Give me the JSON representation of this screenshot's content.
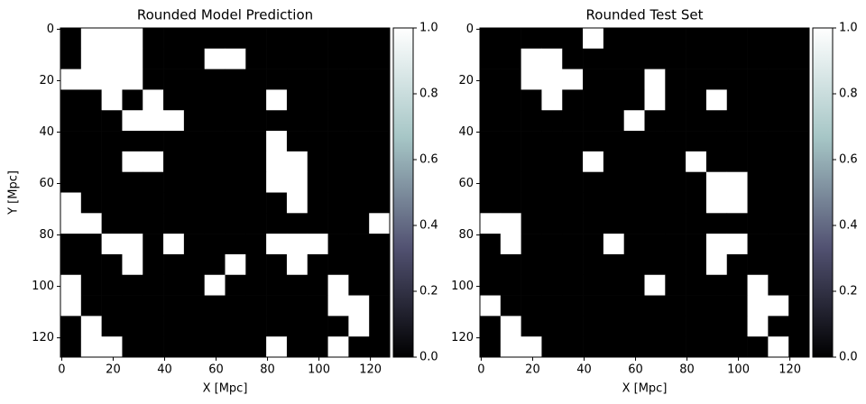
{
  "chart_data": [
    {
      "type": "heatmap",
      "title": "Rounded Model Prediction",
      "xlabel": "X [Mpc]",
      "ylabel": "Y [Mpc]",
      "xlim": [
        -0.5,
        127.5
      ],
      "ylim": [
        127.5,
        -0.5
      ],
      "xticks": [
        0,
        20,
        40,
        60,
        80,
        100,
        120
      ],
      "yticks": [
        0,
        20,
        40,
        60,
        80,
        100,
        120
      ],
      "colormap": [
        "#000000",
        "#525272",
        "#a6c6c6",
        "#ffffff"
      ],
      "colorbar": {
        "lim": [
          0,
          1
        ],
        "ticks": [
          {
            "value": 0,
            "label": "0.0"
          },
          {
            "value": 0.2,
            "label": "0.2"
          },
          {
            "value": 0.4,
            "label": "0.4"
          },
          {
            "value": 0.6,
            "label": "0.6"
          },
          {
            "value": 0.8,
            "label": "0.8"
          },
          {
            "value": 1,
            "label": "1.0"
          }
        ]
      },
      "z": [
        [
          0,
          1,
          1,
          1,
          0,
          0,
          0,
          0,
          0,
          0,
          0,
          0,
          0,
          0,
          0,
          0
        ],
        [
          0,
          1,
          1,
          1,
          0,
          0,
          0,
          1,
          1,
          0,
          0,
          0,
          0,
          0,
          0,
          0
        ],
        [
          1,
          1,
          1,
          1,
          0,
          0,
          0,
          0,
          0,
          0,
          0,
          0,
          0,
          0,
          0,
          0
        ],
        [
          0,
          0,
          1,
          0,
          1,
          0,
          0,
          0,
          0,
          0,
          1,
          0,
          0,
          0,
          0,
          0
        ],
        [
          0,
          0,
          0,
          1,
          1,
          1,
          0,
          0,
          0,
          0,
          0,
          0,
          0,
          0,
          0,
          0
        ],
        [
          0,
          0,
          0,
          0,
          0,
          0,
          0,
          0,
          0,
          0,
          1,
          0,
          0,
          0,
          0,
          0
        ],
        [
          0,
          0,
          0,
          1,
          1,
          0,
          0,
          0,
          0,
          0,
          1,
          1,
          0,
          0,
          0,
          0
        ],
        [
          0,
          0,
          0,
          0,
          0,
          0,
          0,
          0,
          0,
          0,
          1,
          1,
          0,
          0,
          0,
          0
        ],
        [
          1,
          0,
          0,
          0,
          0,
          0,
          0,
          0,
          0,
          0,
          0,
          1,
          0,
          0,
          0,
          0
        ],
        [
          1,
          1,
          0,
          0,
          0,
          0,
          0,
          0,
          0,
          0,
          0,
          0,
          0,
          0,
          0,
          1
        ],
        [
          0,
          0,
          1,
          1,
          0,
          1,
          0,
          0,
          0,
          0,
          1,
          1,
          1,
          0,
          0,
          0
        ],
        [
          0,
          0,
          0,
          1,
          0,
          0,
          0,
          0,
          1,
          0,
          0,
          1,
          0,
          0,
          0,
          0
        ],
        [
          1,
          0,
          0,
          0,
          0,
          0,
          0,
          1,
          0,
          0,
          0,
          0,
          0,
          1,
          0,
          0
        ],
        [
          1,
          0,
          0,
          0,
          0,
          0,
          0,
          0,
          0,
          0,
          0,
          0,
          0,
          1,
          1,
          0
        ],
        [
          0,
          1,
          0,
          0,
          0,
          0,
          0,
          0,
          0,
          0,
          0,
          0,
          0,
          0,
          1,
          0
        ],
        [
          0,
          1,
          1,
          0,
          0,
          0,
          0,
          0,
          0,
          0,
          1,
          0,
          0,
          1,
          0,
          0
        ]
      ]
    },
    {
      "type": "heatmap",
      "title": "Rounded Test Set",
      "xlabel": "X [Mpc]",
      "xlim": [
        -0.5,
        127.5
      ],
      "ylim": [
        127.5,
        -0.5
      ],
      "xticks": [
        0,
        20,
        40,
        60,
        80,
        100,
        120
      ],
      "yticks": [
        0,
        20,
        40,
        60,
        80,
        100,
        120
      ],
      "colormap": [
        "#000000",
        "#525272",
        "#a6c6c6",
        "#ffffff"
      ],
      "colorbar": {
        "lim": [
          0,
          1
        ],
        "ticks": [
          {
            "value": 0,
            "label": "0.0"
          },
          {
            "value": 0.2,
            "label": "0.2"
          },
          {
            "value": 0.4,
            "label": "0.4"
          },
          {
            "value": 0.6,
            "label": "0.6"
          },
          {
            "value": 0.8,
            "label": "0.8"
          },
          {
            "value": 1,
            "label": "1.0"
          }
        ]
      },
      "z": [
        [
          0,
          0,
          0,
          0,
          0,
          1,
          0,
          0,
          0,
          0,
          0,
          0,
          0,
          0,
          0,
          0
        ],
        [
          0,
          0,
          1,
          1,
          0,
          0,
          0,
          0,
          0,
          0,
          0,
          0,
          0,
          0,
          0,
          0
        ],
        [
          0,
          0,
          1,
          1,
          1,
          0,
          0,
          0,
          1,
          0,
          0,
          0,
          0,
          0,
          0,
          0
        ],
        [
          0,
          0,
          0,
          1,
          0,
          0,
          0,
          0,
          1,
          0,
          0,
          1,
          0,
          0,
          0,
          0
        ],
        [
          0,
          0,
          0,
          0,
          0,
          0,
          0,
          1,
          0,
          0,
          0,
          0,
          0,
          0,
          0,
          0
        ],
        [
          0,
          0,
          0,
          0,
          0,
          0,
          0,
          0,
          0,
          0,
          0,
          0,
          0,
          0,
          0,
          0
        ],
        [
          0,
          0,
          0,
          0,
          0,
          1,
          0,
          0,
          0,
          0,
          1,
          0,
          0,
          0,
          0,
          0
        ],
        [
          0,
          0,
          0,
          0,
          0,
          0,
          0,
          0,
          0,
          0,
          0,
          1,
          1,
          0,
          0,
          0
        ],
        [
          0,
          0,
          0,
          0,
          0,
          0,
          0,
          0,
          0,
          0,
          0,
          1,
          1,
          0,
          0,
          0
        ],
        [
          1,
          1,
          0,
          0,
          0,
          0,
          0,
          0,
          0,
          0,
          0,
          0,
          0,
          0,
          0,
          0
        ],
        [
          0,
          1,
          0,
          0,
          0,
          0,
          1,
          0,
          0,
          0,
          0,
          1,
          1,
          0,
          0,
          0
        ],
        [
          0,
          0,
          0,
          0,
          0,
          0,
          0,
          0,
          0,
          0,
          0,
          1,
          0,
          0,
          0,
          0
        ],
        [
          0,
          0,
          0,
          0,
          0,
          0,
          0,
          0,
          1,
          0,
          0,
          0,
          0,
          1,
          0,
          0
        ],
        [
          1,
          0,
          0,
          0,
          0,
          0,
          0,
          0,
          0,
          0,
          0,
          0,
          0,
          1,
          1,
          0
        ],
        [
          0,
          1,
          0,
          0,
          0,
          0,
          0,
          0,
          0,
          0,
          0,
          0,
          0,
          1,
          0,
          0
        ],
        [
          0,
          1,
          1,
          0,
          0,
          0,
          0,
          0,
          0,
          0,
          0,
          0,
          0,
          0,
          1,
          0
        ]
      ]
    }
  ]
}
